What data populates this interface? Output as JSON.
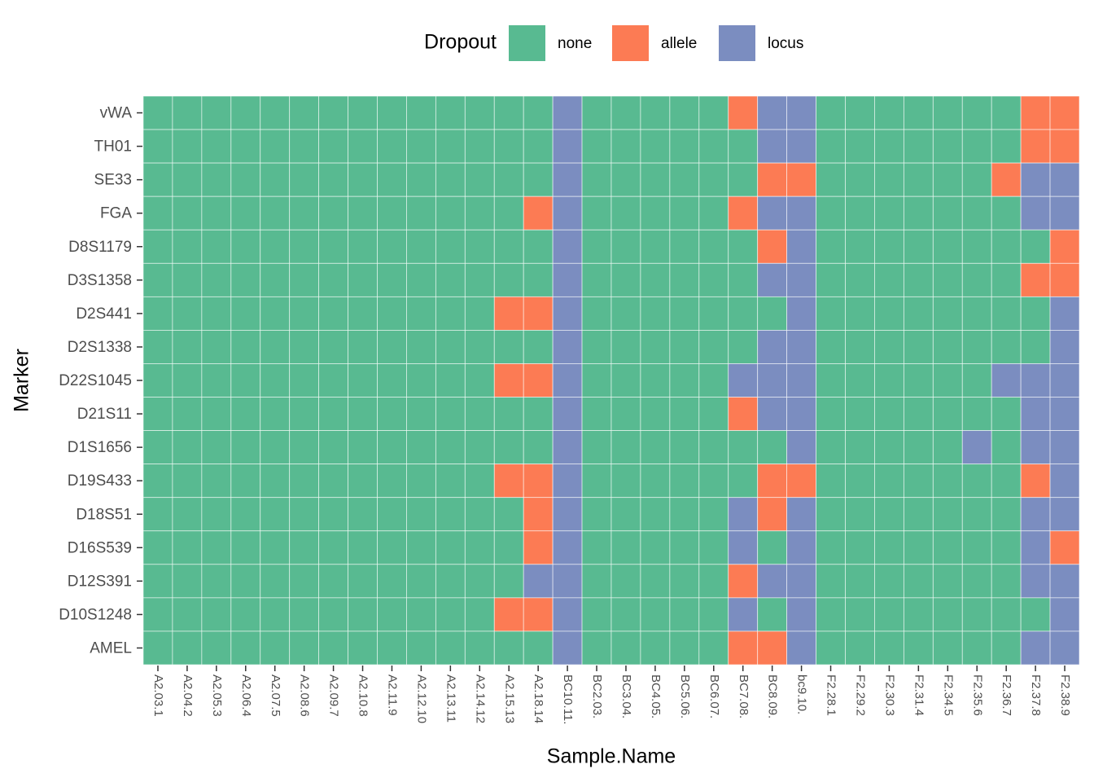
{
  "chart_data": {
    "type": "heatmap",
    "x_label": "Sample.Name",
    "y_label": "Marker",
    "legend": {
      "title": "Dropout",
      "position": "top",
      "items": [
        {
          "name": "none",
          "color": "#58BA91"
        },
        {
          "name": "allele",
          "color": "#FC7B54"
        },
        {
          "name": "locus",
          "color": "#7B8DC0"
        }
      ]
    },
    "x_categories": [
      "A2.03.1",
      "A2.04.2",
      "A2.05.3",
      "A2.06.4",
      "A2.07.5",
      "A2.08.6",
      "A2.09.7",
      "A2.10.8",
      "A2.11.9",
      "A2.12.10",
      "A2.13.11",
      "A2.14.12",
      "A2.15.13",
      "A2.18.14",
      "BC10.11.",
      "BC2.03.",
      "BC3.04.",
      "BC4.05.",
      "BC5.06.",
      "BC6.07.",
      "BC7.08.",
      "BC8.09.",
      "bc9.10.",
      "F2.28.1",
      "F2.29.2",
      "F2.30.3",
      "F2.31.4",
      "F2.34.5",
      "F2.35.6",
      "F2.36.7",
      "F2.37.8",
      "F2.38.9"
    ],
    "y_categories": [
      "vWA",
      "TH01",
      "SE33",
      "FGA",
      "D8S1179",
      "D3S1358",
      "D2S441",
      "D2S1338",
      "D22S1045",
      "D21S11",
      "D1S1656",
      "D19S433",
      "D18S51",
      "D16S539",
      "D12S391",
      "D10S1248",
      "AMEL"
    ],
    "values": [
      [
        "none",
        "none",
        "none",
        "none",
        "none",
        "none",
        "none",
        "none",
        "none",
        "none",
        "none",
        "none",
        "none",
        "none",
        "locus",
        "none",
        "none",
        "none",
        "none",
        "none",
        "allele",
        "locus",
        "locus",
        "none",
        "none",
        "none",
        "none",
        "none",
        "none",
        "none",
        "allele",
        "allele"
      ],
      [
        "none",
        "none",
        "none",
        "none",
        "none",
        "none",
        "none",
        "none",
        "none",
        "none",
        "none",
        "none",
        "none",
        "none",
        "locus",
        "none",
        "none",
        "none",
        "none",
        "none",
        "none",
        "locus",
        "locus",
        "none",
        "none",
        "none",
        "none",
        "none",
        "none",
        "none",
        "allele",
        "allele"
      ],
      [
        "none",
        "none",
        "none",
        "none",
        "none",
        "none",
        "none",
        "none",
        "none",
        "none",
        "none",
        "none",
        "none",
        "none",
        "locus",
        "none",
        "none",
        "none",
        "none",
        "none",
        "none",
        "allele",
        "allele",
        "none",
        "none",
        "none",
        "none",
        "none",
        "none",
        "allele",
        "locus",
        "locus"
      ],
      [
        "none",
        "none",
        "none",
        "none",
        "none",
        "none",
        "none",
        "none",
        "none",
        "none",
        "none",
        "none",
        "none",
        "allele",
        "locus",
        "none",
        "none",
        "none",
        "none",
        "none",
        "allele",
        "locus",
        "locus",
        "none",
        "none",
        "none",
        "none",
        "none",
        "none",
        "none",
        "locus",
        "locus"
      ],
      [
        "none",
        "none",
        "none",
        "none",
        "none",
        "none",
        "none",
        "none",
        "none",
        "none",
        "none",
        "none",
        "none",
        "none",
        "locus",
        "none",
        "none",
        "none",
        "none",
        "none",
        "none",
        "allele",
        "locus",
        "none",
        "none",
        "none",
        "none",
        "none",
        "none",
        "none",
        "none",
        "allele"
      ],
      [
        "none",
        "none",
        "none",
        "none",
        "none",
        "none",
        "none",
        "none",
        "none",
        "none",
        "none",
        "none",
        "none",
        "none",
        "locus",
        "none",
        "none",
        "none",
        "none",
        "none",
        "none",
        "locus",
        "locus",
        "none",
        "none",
        "none",
        "none",
        "none",
        "none",
        "none",
        "allele",
        "allele"
      ],
      [
        "none",
        "none",
        "none",
        "none",
        "none",
        "none",
        "none",
        "none",
        "none",
        "none",
        "none",
        "none",
        "allele",
        "allele",
        "locus",
        "none",
        "none",
        "none",
        "none",
        "none",
        "none",
        "none",
        "locus",
        "none",
        "none",
        "none",
        "none",
        "none",
        "none",
        "none",
        "none",
        "locus"
      ],
      [
        "none",
        "none",
        "none",
        "none",
        "none",
        "none",
        "none",
        "none",
        "none",
        "none",
        "none",
        "none",
        "none",
        "none",
        "locus",
        "none",
        "none",
        "none",
        "none",
        "none",
        "none",
        "locus",
        "locus",
        "none",
        "none",
        "none",
        "none",
        "none",
        "none",
        "none",
        "none",
        "locus"
      ],
      [
        "none",
        "none",
        "none",
        "none",
        "none",
        "none",
        "none",
        "none",
        "none",
        "none",
        "none",
        "none",
        "allele",
        "allele",
        "locus",
        "none",
        "none",
        "none",
        "none",
        "none",
        "locus",
        "locus",
        "locus",
        "none",
        "none",
        "none",
        "none",
        "none",
        "none",
        "locus",
        "locus",
        "locus"
      ],
      [
        "none",
        "none",
        "none",
        "none",
        "none",
        "none",
        "none",
        "none",
        "none",
        "none",
        "none",
        "none",
        "none",
        "none",
        "locus",
        "none",
        "none",
        "none",
        "none",
        "none",
        "allele",
        "locus",
        "locus",
        "none",
        "none",
        "none",
        "none",
        "none",
        "none",
        "none",
        "locus",
        "locus"
      ],
      [
        "none",
        "none",
        "none",
        "none",
        "none",
        "none",
        "none",
        "none",
        "none",
        "none",
        "none",
        "none",
        "none",
        "none",
        "locus",
        "none",
        "none",
        "none",
        "none",
        "none",
        "none",
        "none",
        "locus",
        "none",
        "none",
        "none",
        "none",
        "none",
        "locus",
        "none",
        "locus",
        "locus"
      ],
      [
        "none",
        "none",
        "none",
        "none",
        "none",
        "none",
        "none",
        "none",
        "none",
        "none",
        "none",
        "none",
        "allele",
        "allele",
        "locus",
        "none",
        "none",
        "none",
        "none",
        "none",
        "none",
        "allele",
        "allele",
        "none",
        "none",
        "none",
        "none",
        "none",
        "none",
        "none",
        "allele",
        "locus"
      ],
      [
        "none",
        "none",
        "none",
        "none",
        "none",
        "none",
        "none",
        "none",
        "none",
        "none",
        "none",
        "none",
        "none",
        "allele",
        "locus",
        "none",
        "none",
        "none",
        "none",
        "none",
        "locus",
        "allele",
        "locus",
        "none",
        "none",
        "none",
        "none",
        "none",
        "none",
        "none",
        "locus",
        "locus"
      ],
      [
        "none",
        "none",
        "none",
        "none",
        "none",
        "none",
        "none",
        "none",
        "none",
        "none",
        "none",
        "none",
        "none",
        "allele",
        "locus",
        "none",
        "none",
        "none",
        "none",
        "none",
        "locus",
        "none",
        "locus",
        "none",
        "none",
        "none",
        "none",
        "none",
        "none",
        "none",
        "locus",
        "allele"
      ],
      [
        "none",
        "none",
        "none",
        "none",
        "none",
        "none",
        "none",
        "none",
        "none",
        "none",
        "none",
        "none",
        "none",
        "locus",
        "locus",
        "none",
        "none",
        "none",
        "none",
        "none",
        "allele",
        "locus",
        "locus",
        "none",
        "none",
        "none",
        "none",
        "none",
        "none",
        "none",
        "locus",
        "locus"
      ],
      [
        "none",
        "none",
        "none",
        "none",
        "none",
        "none",
        "none",
        "none",
        "none",
        "none",
        "none",
        "none",
        "allele",
        "allele",
        "locus",
        "none",
        "none",
        "none",
        "none",
        "none",
        "locus",
        "none",
        "locus",
        "none",
        "none",
        "none",
        "none",
        "none",
        "none",
        "none",
        "none",
        "locus"
      ],
      [
        "none",
        "none",
        "none",
        "none",
        "none",
        "none",
        "none",
        "none",
        "none",
        "none",
        "none",
        "none",
        "none",
        "none",
        "locus",
        "none",
        "none",
        "none",
        "none",
        "none",
        "allele",
        "allele",
        "locus",
        "none",
        "none",
        "none",
        "none",
        "none",
        "none",
        "none",
        "locus",
        "locus"
      ]
    ]
  }
}
